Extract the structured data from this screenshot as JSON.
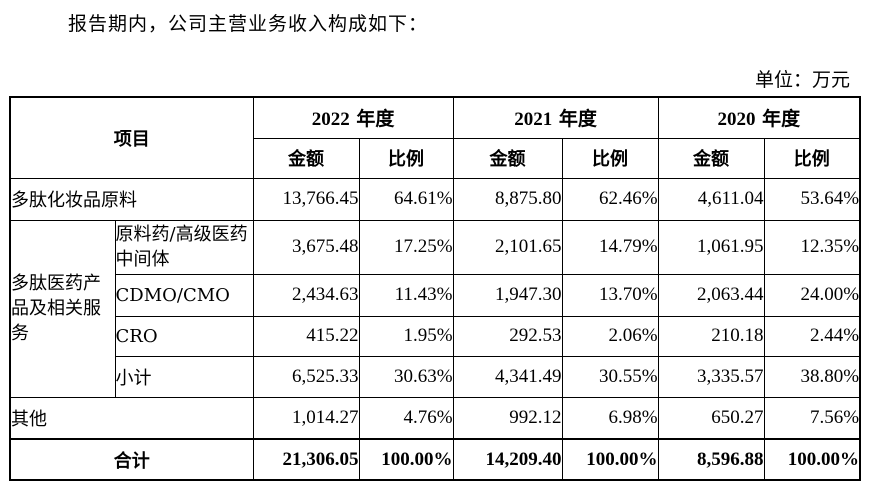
{
  "intro_text": "报告期内，公司主营业务收入构成如下：",
  "unit_label": "单位：万元",
  "header": {
    "item_label": "项目",
    "years": [
      {
        "year": "2022",
        "suffix": "年度"
      },
      {
        "year": "2021",
        "suffix": "年度"
      },
      {
        "year": "2020",
        "suffix": "年度"
      }
    ],
    "amount_label": "金额",
    "ratio_label": "比例"
  },
  "rows": {
    "cosmetics": {
      "label": "多肽化妆品原料",
      "values": [
        "13,766.45",
        "64.61%",
        "8,875.80",
        "62.46%",
        "4,611.04",
        "53.64%"
      ]
    },
    "pharma_group_label": "多肽医药产品及相关服务",
    "api": {
      "label": "原料药/高级医药中间体",
      "values": [
        "3,675.48",
        "17.25%",
        "2,101.65",
        "14.79%",
        "1,061.95",
        "12.35%"
      ]
    },
    "cdmo": {
      "label": "CDMO/CMO",
      "values": [
        "2,434.63",
        "11.43%",
        "1,947.30",
        "13.70%",
        "2,063.44",
        "24.00%"
      ]
    },
    "cro": {
      "label": "CRO",
      "values": [
        "415.22",
        "1.95%",
        "292.53",
        "2.06%",
        "210.18",
        "2.44%"
      ]
    },
    "subtotal": {
      "label": "小计",
      "values": [
        "6,525.33",
        "30.63%",
        "4,341.49",
        "30.55%",
        "3,335.57",
        "38.80%"
      ]
    },
    "other": {
      "label": "其他",
      "values": [
        "1,014.27",
        "4.76%",
        "992.12",
        "6.98%",
        "650.27",
        "7.56%"
      ]
    },
    "total": {
      "label": "合计",
      "values": [
        "21,306.05",
        "100.00%",
        "14,209.40",
        "100.00%",
        "8,596.88",
        "100.00%"
      ]
    }
  }
}
